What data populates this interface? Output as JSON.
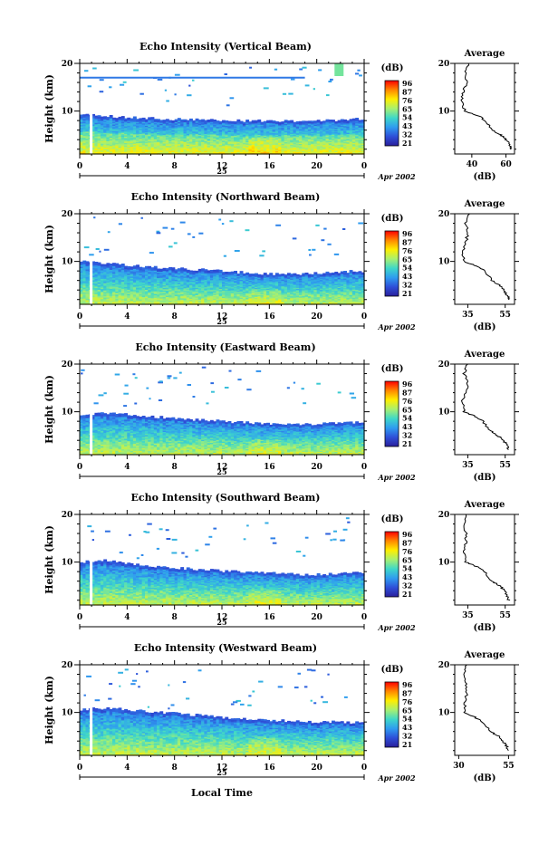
{
  "colorbar": {
    "unit_label": "(dB)",
    "ticks": [
      "96",
      "87",
      "76",
      "65",
      "54",
      "43",
      "32",
      "21"
    ],
    "gradient": [
      "#ff0000",
      "#ff8800",
      "#ffee00",
      "#a8f070",
      "#3fd8c8",
      "#2f9cf0",
      "#2e4fd8",
      "#2a1f9c"
    ]
  },
  "shared": {
    "x_ticks": [
      "0",
      "4",
      "8",
      "12",
      "16",
      "20",
      "0"
    ],
    "date_label": "25",
    "month_label": "Apr 2002",
    "x_axis_title": "Local Time",
    "y_axis_title": "Height (km)",
    "y_ticks": [
      "20",
      "10"
    ],
    "profile_title": "Average",
    "profile_xlabel": "(dB)"
  },
  "chart_data": [
    {
      "type": "heatmap",
      "title": "Echo Intensity (Vertical Beam)",
      "x_range_hours": [
        0,
        24
      ],
      "y_range_km": [
        1,
        20
      ],
      "echo_top_km": [
        9.5,
        9.2,
        9.0,
        8.8,
        8.7,
        8.6,
        8.5,
        8.4,
        8.3,
        8.2,
        8.2,
        8.1,
        8.0,
        8.0,
        8.0,
        8.0,
        8.0,
        7.9,
        7.9,
        8.0,
        8.0,
        8.1,
        8.2,
        8.3,
        8.5
      ],
      "profile": {
        "x_ticks": [
          "40",
          "60"
        ],
        "x_range_db": [
          30,
          65
        ],
        "heights_km": [
          2,
          3,
          4,
          5,
          6,
          8,
          9,
          10,
          12,
          14,
          16,
          18,
          20
        ],
        "values_db": [
          63,
          62,
          60,
          57,
          52,
          48,
          44,
          36,
          34,
          35,
          37,
          36,
          38
        ]
      }
    },
    {
      "type": "heatmap",
      "title": "Echo Intensity (Northward Beam)",
      "x_range_hours": [
        0,
        24
      ],
      "y_range_km": [
        1,
        20
      ],
      "echo_top_km": [
        10.0,
        9.8,
        9.7,
        9.5,
        9.2,
        9.0,
        8.8,
        8.6,
        8.5,
        8.4,
        8.3,
        8.2,
        8.0,
        7.8,
        7.6,
        7.5,
        7.4,
        7.3,
        7.3,
        7.4,
        7.5,
        7.6,
        7.8,
        8.0,
        8.0
      ],
      "profile": {
        "x_ticks": [
          "35",
          "55"
        ],
        "x_range_db": [
          28,
          60
        ],
        "heights_km": [
          2,
          3,
          4,
          5,
          6,
          8,
          9,
          10,
          12,
          14,
          16,
          18,
          20
        ],
        "values_db": [
          57,
          56,
          54,
          52,
          48,
          44,
          40,
          33,
          32,
          34,
          35,
          34,
          36
        ]
      }
    },
    {
      "type": "heatmap",
      "title": "Echo Intensity (Eastward Beam)",
      "x_range_hours": [
        0,
        24
      ],
      "y_range_km": [
        1,
        20
      ],
      "echo_top_km": [
        9.5,
        9.6,
        9.7,
        9.6,
        9.4,
        9.2,
        9.0,
        8.8,
        8.6,
        8.4,
        8.3,
        8.2,
        8.0,
        7.8,
        7.7,
        7.6,
        7.5,
        7.5,
        7.4,
        7.4,
        7.5,
        7.6,
        7.7,
        7.8,
        7.8
      ],
      "profile": {
        "x_ticks": [
          "35",
          "55"
        ],
        "x_range_db": [
          28,
          60
        ],
        "heights_km": [
          2,
          3,
          4,
          5,
          6,
          8,
          9,
          10,
          12,
          14,
          16,
          18,
          20
        ],
        "values_db": [
          57,
          56,
          54,
          51,
          47,
          43,
          39,
          33,
          32,
          34,
          35,
          33,
          35
        ]
      }
    },
    {
      "type": "heatmap",
      "title": "Echo Intensity (Southward Beam)",
      "x_range_hours": [
        0,
        24
      ],
      "y_range_km": [
        1,
        20
      ],
      "echo_top_km": [
        10.0,
        10.3,
        10.4,
        10.2,
        9.8,
        9.5,
        9.2,
        9.0,
        8.8,
        8.6,
        8.5,
        8.3,
        8.1,
        8.0,
        7.9,
        7.8,
        7.7,
        7.6,
        7.5,
        7.4,
        7.4,
        7.5,
        7.6,
        7.7,
        7.8
      ],
      "profile": {
        "x_ticks": [
          "35",
          "55"
        ],
        "x_range_db": [
          28,
          60
        ],
        "heights_km": [
          2,
          3,
          4,
          5,
          6,
          8,
          9,
          10,
          12,
          14,
          16,
          18,
          20
        ],
        "values_db": [
          57,
          56,
          55,
          52,
          48,
          44,
          40,
          34,
          33,
          34,
          34,
          33,
          34
        ]
      }
    },
    {
      "type": "heatmap",
      "title": "Echo Intensity (Westward Beam)",
      "x_range_hours": [
        0,
        24
      ],
      "y_range_km": [
        1,
        20
      ],
      "echo_top_km": [
        10.5,
        10.8,
        10.9,
        10.8,
        10.6,
        10.4,
        10.2,
        10.0,
        9.8,
        9.6,
        9.4,
        9.2,
        9.0,
        8.8,
        8.6,
        8.5,
        8.4,
        8.3,
        8.2,
        8.1,
        8.0,
        8.0,
        8.0,
        7.9,
        7.8
      ],
      "profile": {
        "x_ticks": [
          "30",
          "55"
        ],
        "x_range_db": [
          28,
          58
        ],
        "heights_km": [
          2,
          3,
          4,
          5,
          6,
          8,
          9,
          10,
          12,
          14,
          16,
          18,
          20
        ],
        "values_db": [
          55,
          54,
          52,
          50,
          46,
          42,
          38,
          33,
          33,
          34,
          34,
          33,
          34
        ]
      }
    }
  ]
}
